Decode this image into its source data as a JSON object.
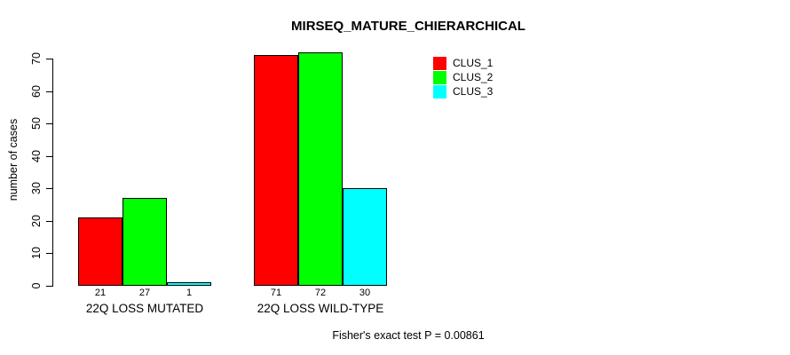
{
  "chart_data": {
    "type": "bar",
    "title": "MIRSEQ_MATURE_CHIERARCHICAL",
    "ylabel": "number of cases",
    "xlabel": "",
    "categories": [
      "22Q LOSS MUTATED",
      "22Q LOSS WILD-TYPE"
    ],
    "series": [
      {
        "name": "CLUS_1",
        "color": "#ff0000",
        "values": [
          21,
          71
        ]
      },
      {
        "name": "CLUS_2",
        "color": "#00ff00",
        "values": [
          27,
          72
        ]
      },
      {
        "name": "CLUS_3",
        "color": "#00ffff",
        "values": [
          1,
          30
        ]
      }
    ],
    "ylim": [
      0,
      70
    ],
    "yticks": [
      0,
      10,
      20,
      30,
      40,
      50,
      60,
      70
    ],
    "grid": false,
    "legend_position": "top-right",
    "bar_outline_color": "#000000",
    "annotation": "Fisher's exact test P = 0.00861"
  }
}
